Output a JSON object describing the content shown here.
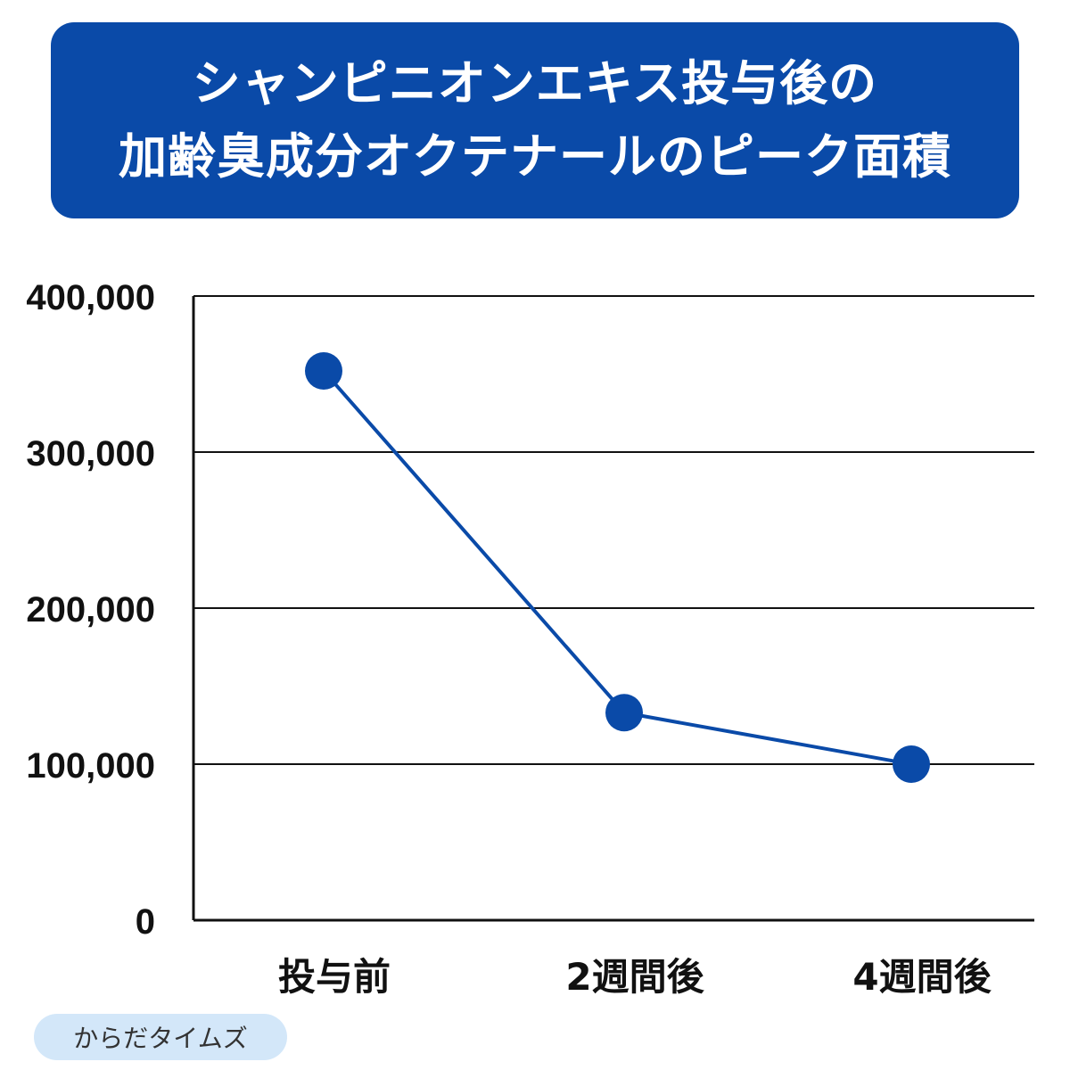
{
  "title": {
    "line1": "シャンピニオンエキス投与後の",
    "line2": "加齢臭成分オクテナールのピーク面積"
  },
  "source": "からだタイムズ",
  "colors": {
    "title_bg": "#0a4aa8",
    "series": "#0a4aa8",
    "badge_bg": "#d3e7f9"
  },
  "chart_data": {
    "type": "line",
    "categories": [
      "投与前",
      "2週間後",
      "4週間後"
    ],
    "series": [
      {
        "values": [
          352000,
          133000,
          100000
        ]
      }
    ],
    "yticks": [
      "0",
      "100,000",
      "200,000",
      "300,000",
      "400,000"
    ],
    "ytick_values": [
      0,
      100000,
      200000,
      300000,
      400000
    ],
    "ylim": [
      0,
      400000
    ],
    "grid": true,
    "xlabel": "",
    "ylabel": ""
  }
}
